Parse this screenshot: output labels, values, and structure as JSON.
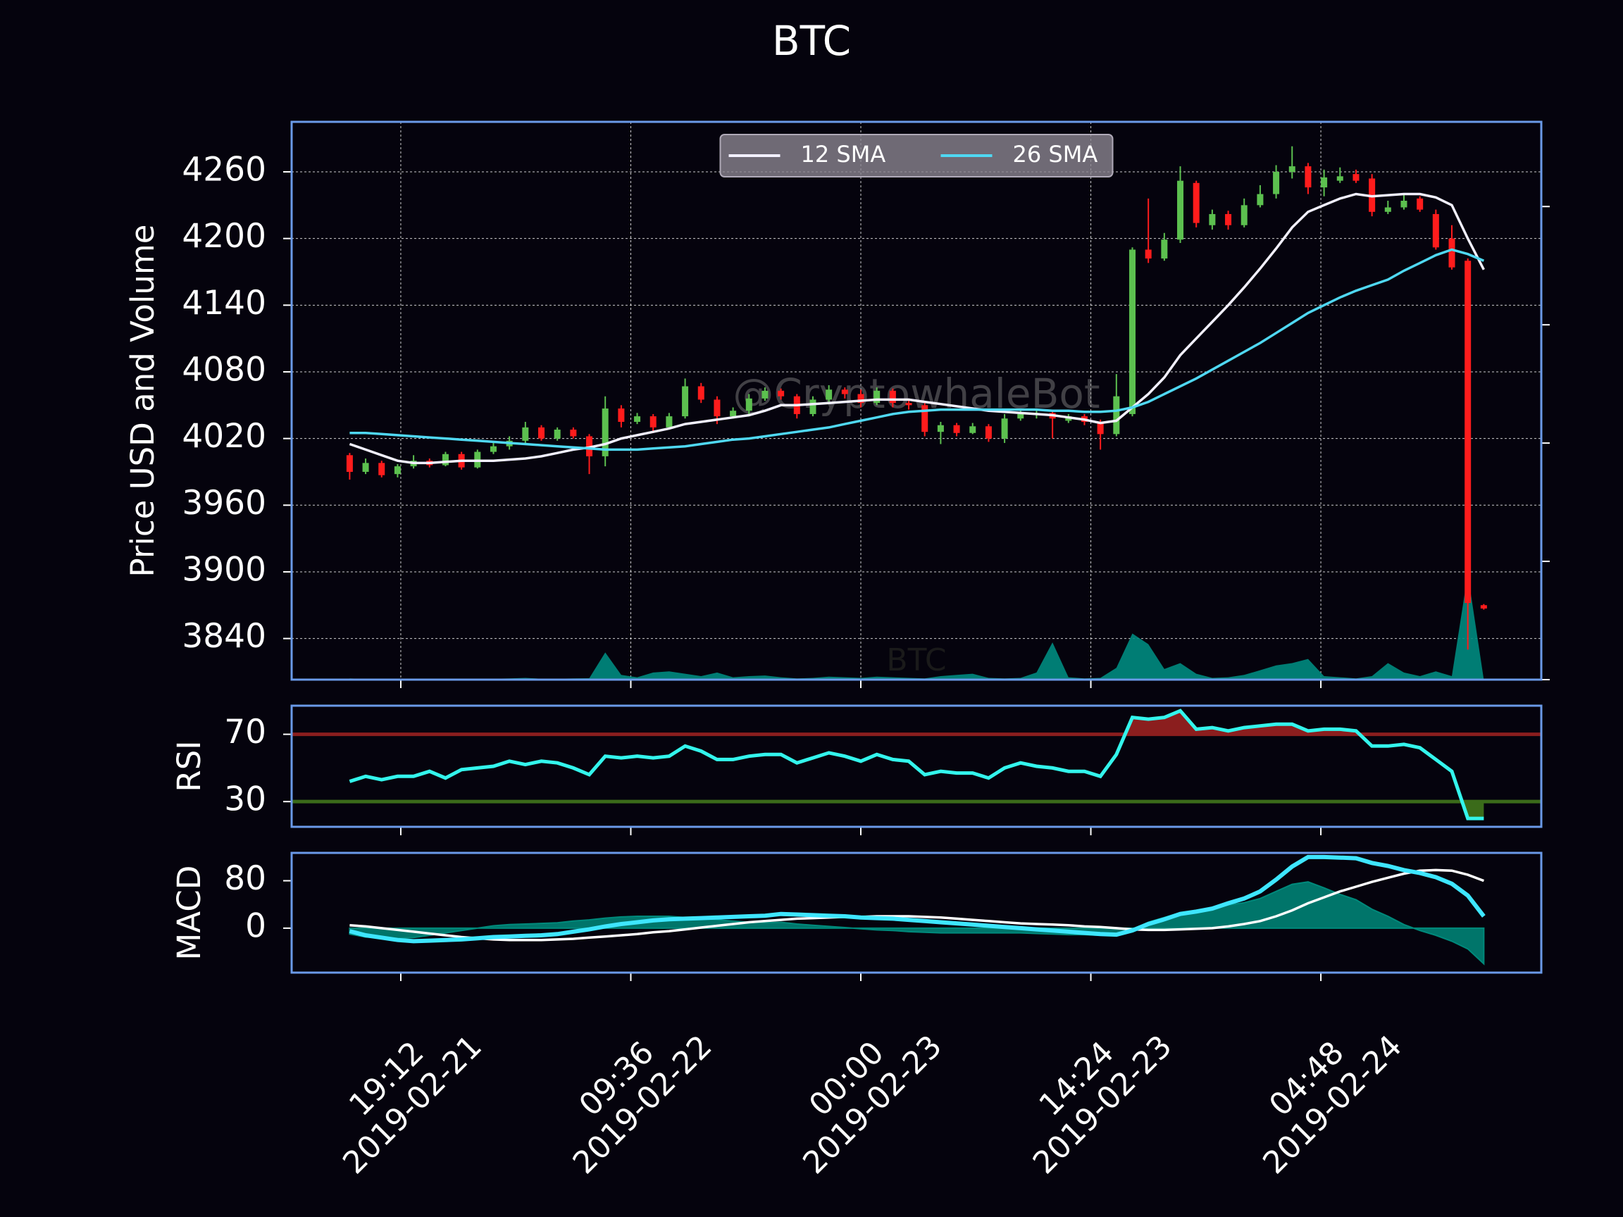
{
  "chart_data": [
    {
      "type": "candlestick",
      "title": "BTC",
      "ylabel": "Price USD and Volume",
      "annotations": [
        "@CryptowhaleBot",
        "BTC"
      ],
      "x": [
        "2019-02-21 16:00",
        "2019-02-21 17:00",
        "2019-02-21 18:00",
        "2019-02-21 19:00",
        "2019-02-21 20:00",
        "2019-02-21 21:00",
        "2019-02-21 22:00",
        "2019-02-21 23:00",
        "2019-02-22 00:00",
        "2019-02-22 01:00",
        "2019-02-22 02:00",
        "2019-02-22 03:00",
        "2019-02-22 04:00",
        "2019-02-22 05:00",
        "2019-02-22 06:00",
        "2019-02-22 07:00",
        "2019-02-22 08:00",
        "2019-02-22 09:00",
        "2019-02-22 10:00",
        "2019-02-22 11:00",
        "2019-02-22 12:00",
        "2019-02-22 13:00",
        "2019-02-22 14:00",
        "2019-02-22 15:00",
        "2019-02-22 16:00",
        "2019-02-22 17:00",
        "2019-02-22 18:00",
        "2019-02-22 19:00",
        "2019-02-22 20:00",
        "2019-02-22 21:00",
        "2019-02-22 22:00",
        "2019-02-22 23:00",
        "2019-02-23 00:00",
        "2019-02-23 01:00",
        "2019-02-23 02:00",
        "2019-02-23 03:00",
        "2019-02-23 04:00",
        "2019-02-23 05:00",
        "2019-02-23 06:00",
        "2019-02-23 07:00",
        "2019-02-23 08:00",
        "2019-02-23 09:00",
        "2019-02-23 10:00",
        "2019-02-23 11:00",
        "2019-02-23 12:00",
        "2019-02-23 13:00",
        "2019-02-23 14:00",
        "2019-02-23 15:00",
        "2019-02-23 16:00",
        "2019-02-23 17:00",
        "2019-02-23 18:00",
        "2019-02-23 19:00",
        "2019-02-23 20:00",
        "2019-02-23 21:00",
        "2019-02-23 22:00",
        "2019-02-23 23:00",
        "2019-02-24 00:00",
        "2019-02-24 01:00",
        "2019-02-24 02:00",
        "2019-02-24 03:00",
        "2019-02-24 04:00",
        "2019-02-24 05:00",
        "2019-02-24 06:00",
        "2019-02-24 07:00",
        "2019-02-24 08:00",
        "2019-02-24 09:00",
        "2019-02-24 10:00",
        "2019-02-24 11:00",
        "2019-02-24 12:00",
        "2019-02-24 13:00",
        "2019-02-24 14:00",
        "2019-02-24 15:00"
      ],
      "xlim": [
        "2019-02-21 12:22",
        "2019-02-24 18:36"
      ],
      "open": [
        4005,
        3990,
        3998,
        3988,
        3995,
        4000,
        3996,
        4006,
        3994,
        4008,
        4013,
        4018,
        4030,
        4020,
        4028,
        4022,
        4004,
        4047,
        4035,
        4040,
        4030,
        4040,
        4067,
        4055,
        4040,
        4045,
        4056,
        4063,
        4058,
        4042,
        4055,
        4064,
        4060,
        4052,
        4063,
        4052,
        4050,
        4026,
        4032,
        4025,
        4031,
        4020,
        4038,
        4042,
        4043,
        4036,
        4040,
        4035,
        4024,
        4042,
        4190,
        4182,
        4199,
        4250,
        4212,
        4222,
        4212,
        4230,
        4240,
        4260,
        4265,
        4246,
        4252,
        4258,
        4254,
        4224,
        4228,
        4236,
        4222,
        4200,
        4180,
        3870
      ],
      "high": [
        4007,
        4002,
        4000,
        3997,
        4005,
        4002,
        4008,
        4008,
        4010,
        4016,
        4022,
        4035,
        4032,
        4030,
        4030,
        4024,
        4058,
        4050,
        4043,
        4042,
        4043,
        4074,
        4070,
        4058,
        4048,
        4060,
        4066,
        4065,
        4060,
        4058,
        4068,
        4066,
        4064,
        4066,
        4065,
        4056,
        4052,
        4035,
        4034,
        4034,
        4033,
        4042,
        4045,
        4046,
        4046,
        4042,
        4042,
        4037,
        4078,
        4192,
        4236,
        4205,
        4265,
        4252,
        4226,
        4225,
        4236,
        4248,
        4266,
        4283,
        4268,
        4262,
        4264,
        4262,
        4258,
        4234,
        4240,
        4238,
        4226,
        4212,
        4182,
        3871
      ],
      "low": [
        3983,
        3988,
        3985,
        3985,
        3993,
        3994,
        3995,
        3992,
        3993,
        4006,
        4010,
        4015,
        4018,
        4018,
        4020,
        3988,
        3995,
        4030,
        4033,
        4025,
        4028,
        4038,
        4052,
        4033,
        4038,
        4040,
        4054,
        4055,
        4038,
        4040,
        4052,
        4056,
        4048,
        4050,
        4048,
        4046,
        4022,
        4015,
        4022,
        4024,
        4017,
        4016,
        4036,
        4038,
        4020,
        4034,
        4032,
        4010,
        4022,
        4040,
        4178,
        4180,
        4196,
        4210,
        4208,
        4208,
        4210,
        4228,
        4236,
        4254,
        4240,
        4238,
        4250,
        4250,
        4220,
        4222,
        4226,
        4224,
        4190,
        4172,
        3830,
        3866
      ],
      "close": [
        3990,
        3998,
        3987,
        3995,
        4000,
        3996,
        4006,
        3994,
        4008,
        4013,
        4018,
        4030,
        4020,
        4028,
        4022,
        4004,
        4047,
        4035,
        4040,
        4030,
        4040,
        4067,
        4055,
        4040,
        4045,
        4056,
        4063,
        4058,
        4042,
        4055,
        4064,
        4060,
        4052,
        4063,
        4052,
        4050,
        4026,
        4032,
        4025,
        4031,
        4020,
        4038,
        4042,
        4043,
        4038,
        4040,
        4035,
        4024,
        4058,
        4190,
        4182,
        4199,
        4252,
        4214,
        4222,
        4212,
        4230,
        4240,
        4260,
        4265,
        4246,
        4255,
        4256,
        4252,
        4224,
        4228,
        4234,
        4226,
        4192,
        4174,
        3872,
        3867
      ],
      "up_color": "#5cc04f",
      "down_color": "#ff1c1c",
      "series": [
        {
          "name": "12 SMA",
          "color": "#f2f0ff",
          "values": [
            4015,
            4010,
            4005,
            4000,
            3998,
            3998,
            3999,
            4000,
            4000,
            4000,
            4001,
            4002,
            4004,
            4007,
            4010,
            4012,
            4015,
            4020,
            4023,
            4026,
            4029,
            4033,
            4035,
            4037,
            4039,
            4041,
            4045,
            4050,
            4050,
            4051,
            4052,
            4053,
            4054,
            4055,
            4055,
            4055,
            4053,
            4051,
            4049,
            4047,
            4045,
            4044,
            4043,
            4042,
            4041,
            4039,
            4037,
            4034,
            4036,
            4048,
            4060,
            4075,
            4095,
            4110,
            4125,
            4140,
            4156,
            4173,
            4191,
            4210,
            4224,
            4230,
            4236,
            4240,
            4238,
            4239,
            4240,
            4240,
            4237,
            4230,
            4200,
            4172
          ]
        },
        {
          "name": "26 SMA",
          "color": "#4fd8f2",
          "values": [
            4025,
            4025,
            4024,
            4023,
            4022,
            4021,
            4020,
            4019,
            4018,
            4017,
            4016,
            4015,
            4014,
            4013,
            4012,
            4011,
            4010,
            4010,
            4010,
            4011,
            4012,
            4013,
            4015,
            4017,
            4019,
            4020,
            4022,
            4024,
            4026,
            4028,
            4030,
            4033,
            4036,
            4039,
            4042,
            4044,
            4045,
            4046,
            4046,
            4046,
            4046,
            4046,
            4046,
            4046,
            4045,
            4045,
            4044,
            4044,
            4045,
            4048,
            4053,
            4060,
            4067,
            4074,
            4082,
            4090,
            4098,
            4106,
            4115,
            4124,
            4133,
            4140,
            4147,
            4153,
            4158,
            4163,
            4171,
            4178,
            4185,
            4190,
            4186,
            4180
          ]
        }
      ],
      "volume": {
        "axis": "y2",
        "color": "#008b80",
        "values": [
          10,
          6,
          4,
          4,
          3,
          3,
          5,
          5,
          6,
          7,
          10,
          15,
          8,
          8,
          10,
          12,
          230,
          40,
          20,
          60,
          70,
          50,
          30,
          60,
          20,
          30,
          35,
          20,
          10,
          15,
          25,
          20,
          15,
          25,
          20,
          15,
          10,
          30,
          40,
          50,
          15,
          10,
          15,
          60,
          315,
          20,
          10,
          15,
          100,
          390,
          300,
          90,
          140,
          50,
          15,
          20,
          40,
          80,
          120,
          140,
          175,
          30,
          20,
          10,
          30,
          140,
          60,
          30,
          70,
          30,
          895,
          0
        ]
      },
      "ylim": [
        3803,
        4305
      ],
      "yticks": [
        3840,
        3900,
        3960,
        4020,
        4080,
        4140,
        4200,
        4260
      ],
      "y2lim": [
        0,
        4716
      ],
      "y2ticks": [
        0,
        1000,
        2000,
        3000,
        4000
      ],
      "grid": true,
      "legend": "upper center"
    },
    {
      "type": "line",
      "ylabel": "RSI",
      "color": "#33f5ec",
      "values": [
        42,
        45,
        43,
        45,
        45,
        48,
        44,
        49,
        50,
        51,
        54,
        52,
        54,
        53,
        50,
        46,
        57,
        56,
        57,
        56,
        57,
        63,
        60,
        55,
        55,
        57,
        58,
        58,
        53,
        56,
        59,
        57,
        54,
        58,
        55,
        54,
        46,
        48,
        47,
        47,
        44,
        50,
        53,
        51,
        50,
        48,
        48,
        45,
        58,
        80,
        79,
        80,
        84,
        73,
        74,
        72,
        74,
        75,
        76,
        76,
        72,
        73,
        73,
        72,
        63,
        63,
        64,
        62,
        55,
        48,
        20,
        20
      ],
      "ylim": [
        15,
        87
      ],
      "yticks": [
        30,
        70
      ],
      "overbought": {
        "value": 70,
        "color": "#8b1e1e"
      },
      "oversold": {
        "value": 30,
        "color": "#3b6b1a"
      }
    },
    {
      "type": "macd",
      "ylabel": "MACD",
      "macd": {
        "color": "#3ee6ff",
        "values": [
          -5,
          -12,
          -16,
          -20,
          -22,
          -21,
          -20,
          -19,
          -17,
          -15,
          -14,
          -13,
          -12,
          -10,
          -6,
          -2,
          3,
          7,
          10,
          13,
          15,
          16,
          17,
          18,
          19,
          20,
          21,
          24,
          23,
          22,
          21,
          20,
          18,
          17,
          16,
          14,
          12,
          10,
          8,
          6,
          4,
          2,
          0,
          -2,
          -4,
          -6,
          -8,
          -10,
          -11,
          -4,
          7,
          15,
          24,
          28,
          33,
          42,
          50,
          62,
          82,
          104,
          120,
          120,
          119,
          118,
          110,
          105,
          98,
          93,
          86,
          75,
          55,
          20
        ]
      },
      "signal": {
        "color": "#ffffff",
        "values": [
          5,
          3,
          0,
          -3,
          -6,
          -9,
          -12,
          -15,
          -17,
          -19,
          -20,
          -20,
          -20,
          -19,
          -18,
          -16,
          -14,
          -12,
          -10,
          -7,
          -5,
          -2,
          1,
          4,
          7,
          10,
          12,
          14,
          16,
          17,
          18,
          19,
          19,
          20,
          20,
          20,
          19,
          18,
          16,
          14,
          12,
          10,
          8,
          7,
          6,
          5,
          3,
          2,
          0,
          -2,
          -3,
          -3,
          -2,
          -1,
          0,
          3,
          7,
          12,
          20,
          30,
          42,
          52,
          62,
          70,
          78,
          85,
          92,
          97,
          98,
          97,
          90,
          80
        ]
      },
      "hist": {
        "color": "#00897b",
        "values": [
          -10,
          -15,
          -16,
          -17,
          -16,
          -12,
          -8,
          -4,
          0,
          4,
          6,
          7,
          8,
          9,
          12,
          14,
          17,
          19,
          20,
          20,
          20,
          18,
          16,
          14,
          12,
          10,
          9,
          10,
          7,
          5,
          3,
          1,
          -1,
          -3,
          -4,
          -6,
          -7,
          -8,
          -8,
          -8,
          -8,
          -8,
          -8,
          -9,
          -10,
          -11,
          -11,
          -12,
          -11,
          -2,
          10,
          18,
          26,
          29,
          33,
          39,
          43,
          50,
          62,
          74,
          78,
          68,
          57,
          48,
          32,
          20,
          6,
          -4,
          -12,
          -22,
          -35,
          -60
        ]
      },
      "ylim": [
        -75,
        127
      ],
      "yticks": [
        0,
        80
      ],
      "xticks": [
        {
          "value": "2019-02-21 19:12",
          "label": "19:12\n2019-02-21"
        },
        {
          "value": "2019-02-22 09:36",
          "label": "09:36\n2019-02-22"
        },
        {
          "value": "2019-02-23 00:00",
          "label": "00:00\n2019-02-23"
        },
        {
          "value": "2019-02-23 14:24",
          "label": "14:24\n2019-02-23"
        },
        {
          "value": "2019-02-24 04:48",
          "label": "04:48\n2019-02-24"
        }
      ]
    }
  ]
}
